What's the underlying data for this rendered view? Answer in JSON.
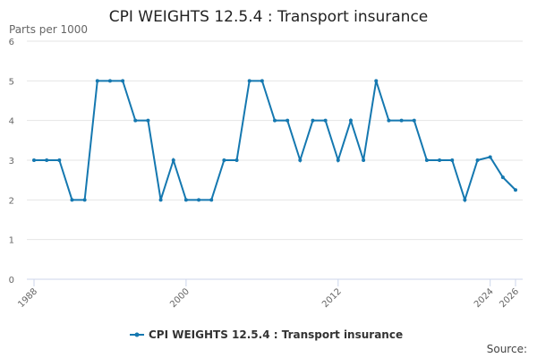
{
  "chart_data": {
    "type": "line",
    "title": "CPI WEIGHTS 12.5.4 : Transport insurance",
    "y_label": "Parts per 1000",
    "source": "Source:",
    "x": [
      1988,
      1989,
      1990,
      1991,
      1992,
      1993,
      1994,
      1995,
      1996,
      1997,
      1998,
      1999,
      2000,
      2001,
      2002,
      2003,
      2004,
      2005,
      2006,
      2007,
      2008,
      2009,
      2010,
      2011,
      2012,
      2013,
      2014,
      2015,
      2016,
      2017,
      2018,
      2019,
      2020,
      2021,
      2022,
      2023,
      2024,
      2025,
      2026
    ],
    "series": [
      {
        "name": "CPI WEIGHTS 12.5.4 : Transport insurance",
        "color": "#1578b0",
        "values": [
          3,
          3,
          3,
          2,
          2,
          5,
          5,
          5,
          4,
          4,
          2,
          3,
          2,
          2,
          2,
          3,
          3,
          5,
          5,
          4,
          4,
          3,
          4,
          4,
          3,
          4,
          3,
          5,
          4,
          4,
          4,
          3,
          3,
          3,
          2,
          3,
          3.08,
          2.57,
          2.25
        ]
      }
    ],
    "xlim": [
      1988,
      2026
    ],
    "xticks": [
      1988,
      2000,
      2012,
      2024,
      2026
    ],
    "ylim": [
      0,
      6
    ],
    "yticks": [
      0,
      1,
      2,
      3,
      4,
      5,
      6
    ],
    "grid": true
  }
}
